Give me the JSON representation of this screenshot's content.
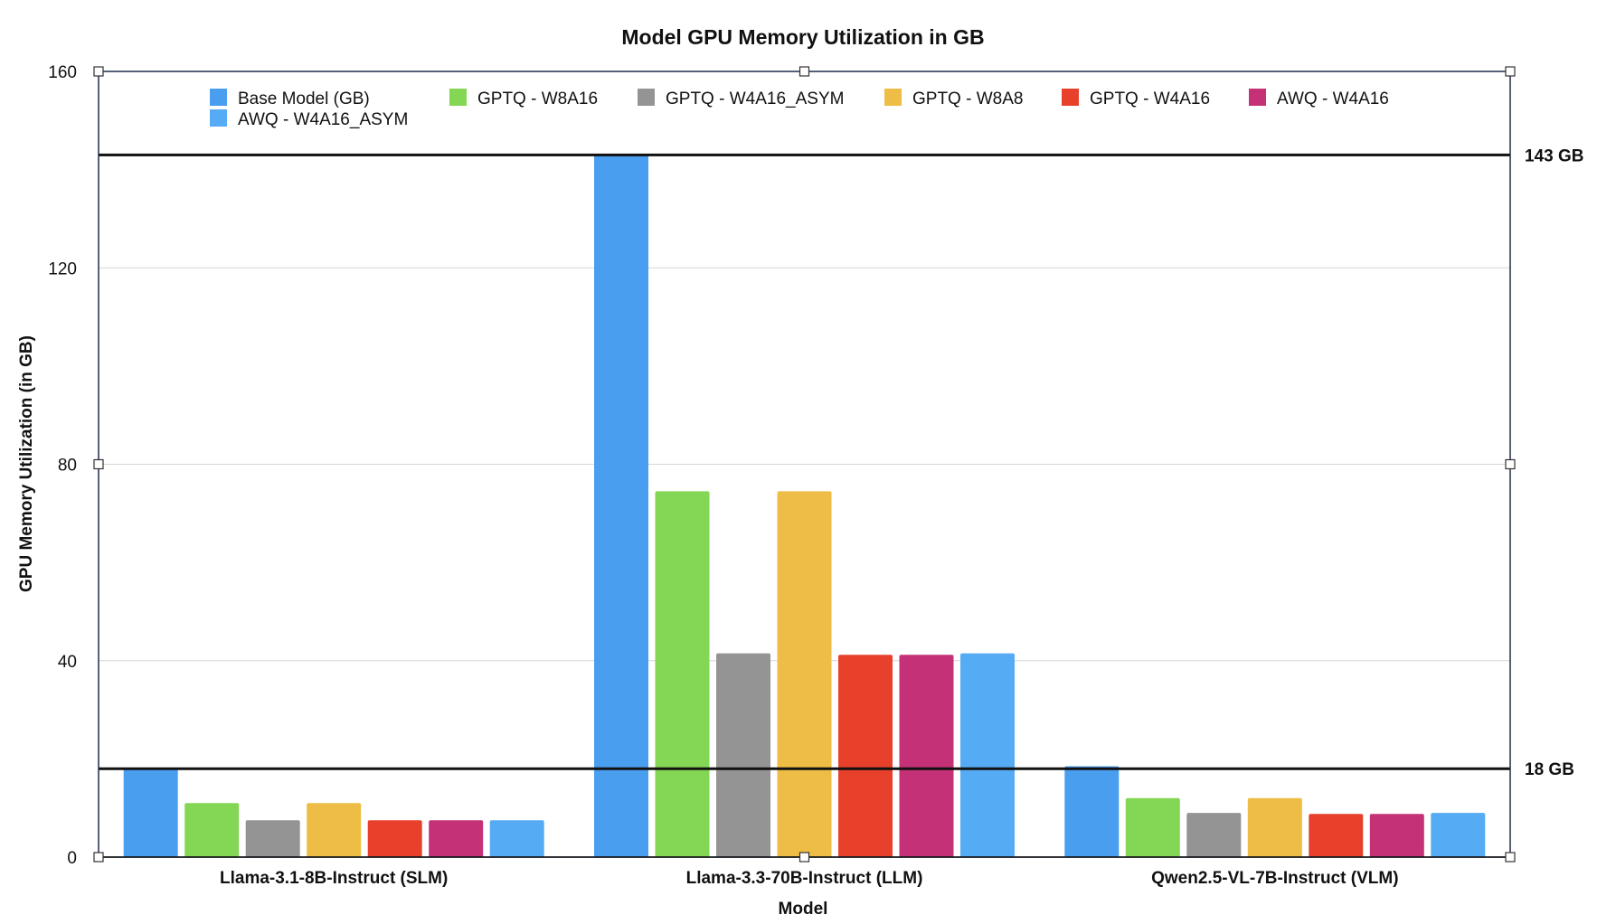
{
  "chart_data": {
    "type": "bar",
    "title": "Model GPU Memory Utilization in GB",
    "xlabel": "Model",
    "ylabel": "GPU Memory Utilization (in GB)",
    "ylim": [
      0,
      160
    ],
    "yticks": [
      0,
      40,
      80,
      120,
      160
    ],
    "grid": true,
    "legend_position": "top",
    "categories": [
      "Llama-3.1-8B-Instruct (SLM)",
      "Llama-3.3-70B-Instruct (LLM)",
      "Qwen2.5-VL-7B-Instruct (VLM)"
    ],
    "series": [
      {
        "name": "Base Model (GB)",
        "color": "#4A9EF0",
        "values": [
          18,
          143,
          18.5
        ]
      },
      {
        "name": "GPTQ - W8A16",
        "color": "#84D655",
        "values": [
          11,
          74.5,
          12
        ]
      },
      {
        "name": "GPTQ - W4A16_ASYM",
        "color": "#949494",
        "values": [
          7.5,
          41.5,
          9
        ]
      },
      {
        "name": "GPTQ - W8A8",
        "color": "#EEBD45",
        "values": [
          11,
          74.5,
          12
        ]
      },
      {
        "name": "GPTQ - W4A16",
        "color": "#E8412B",
        "values": [
          7.5,
          41.2,
          8.8
        ]
      },
      {
        "name": "AWQ - W4A16",
        "color": "#C43176",
        "values": [
          7.5,
          41.2,
          8.8
        ]
      },
      {
        "name": "AWQ - W4A16_ASYM",
        "color": "#56ABF5",
        "values": [
          7.5,
          41.5,
          9
        ]
      }
    ],
    "reference_lines": [
      {
        "value": 143,
        "label": "143 GB"
      },
      {
        "value": 18,
        "label": "18 GB"
      }
    ]
  }
}
